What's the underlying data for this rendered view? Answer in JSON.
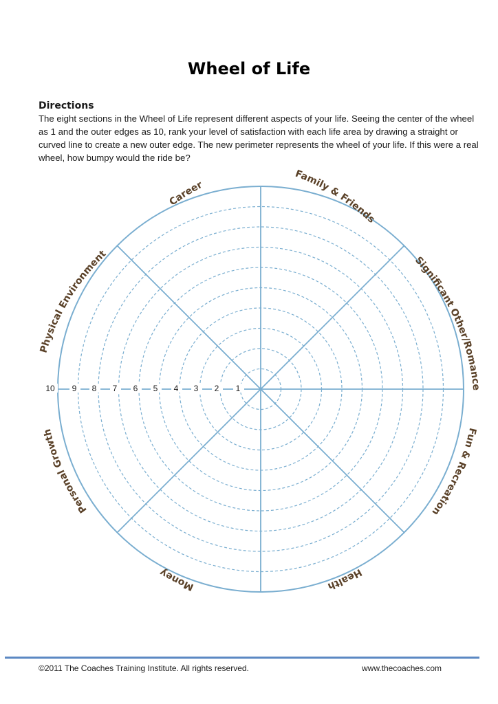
{
  "page": {
    "title": "Wheel of Life"
  },
  "directions": {
    "heading": "Directions",
    "body": "The eight sections in the Wheel of Life represent different aspects of your life. Seeing the center of the wheel as 1 and the outer edges as 10, rank your level of satisfaction with each life area by drawing a straight or curved line to create a new outer edge. The new perimeter represents the wheel of your life. If this were a real wheel, how bumpy would the ride be?"
  },
  "wheel": {
    "segments": [
      "Career",
      "Family & Friends",
      "Significant Other/Romance",
      "Fun & Recreation",
      "Health",
      "Money",
      "Personal Growth",
      "Physical Environment"
    ],
    "scale": [
      "1",
      "2",
      "3",
      "4",
      "5",
      "6",
      "7",
      "8",
      "9",
      "10"
    ],
    "colors": {
      "line": "#7aaed0",
      "label": "#5a4128"
    }
  },
  "footer": {
    "copyright": "©2011 The Coaches Training Institute. All rights reserved.",
    "website": "www.thecoaches.com"
  }
}
